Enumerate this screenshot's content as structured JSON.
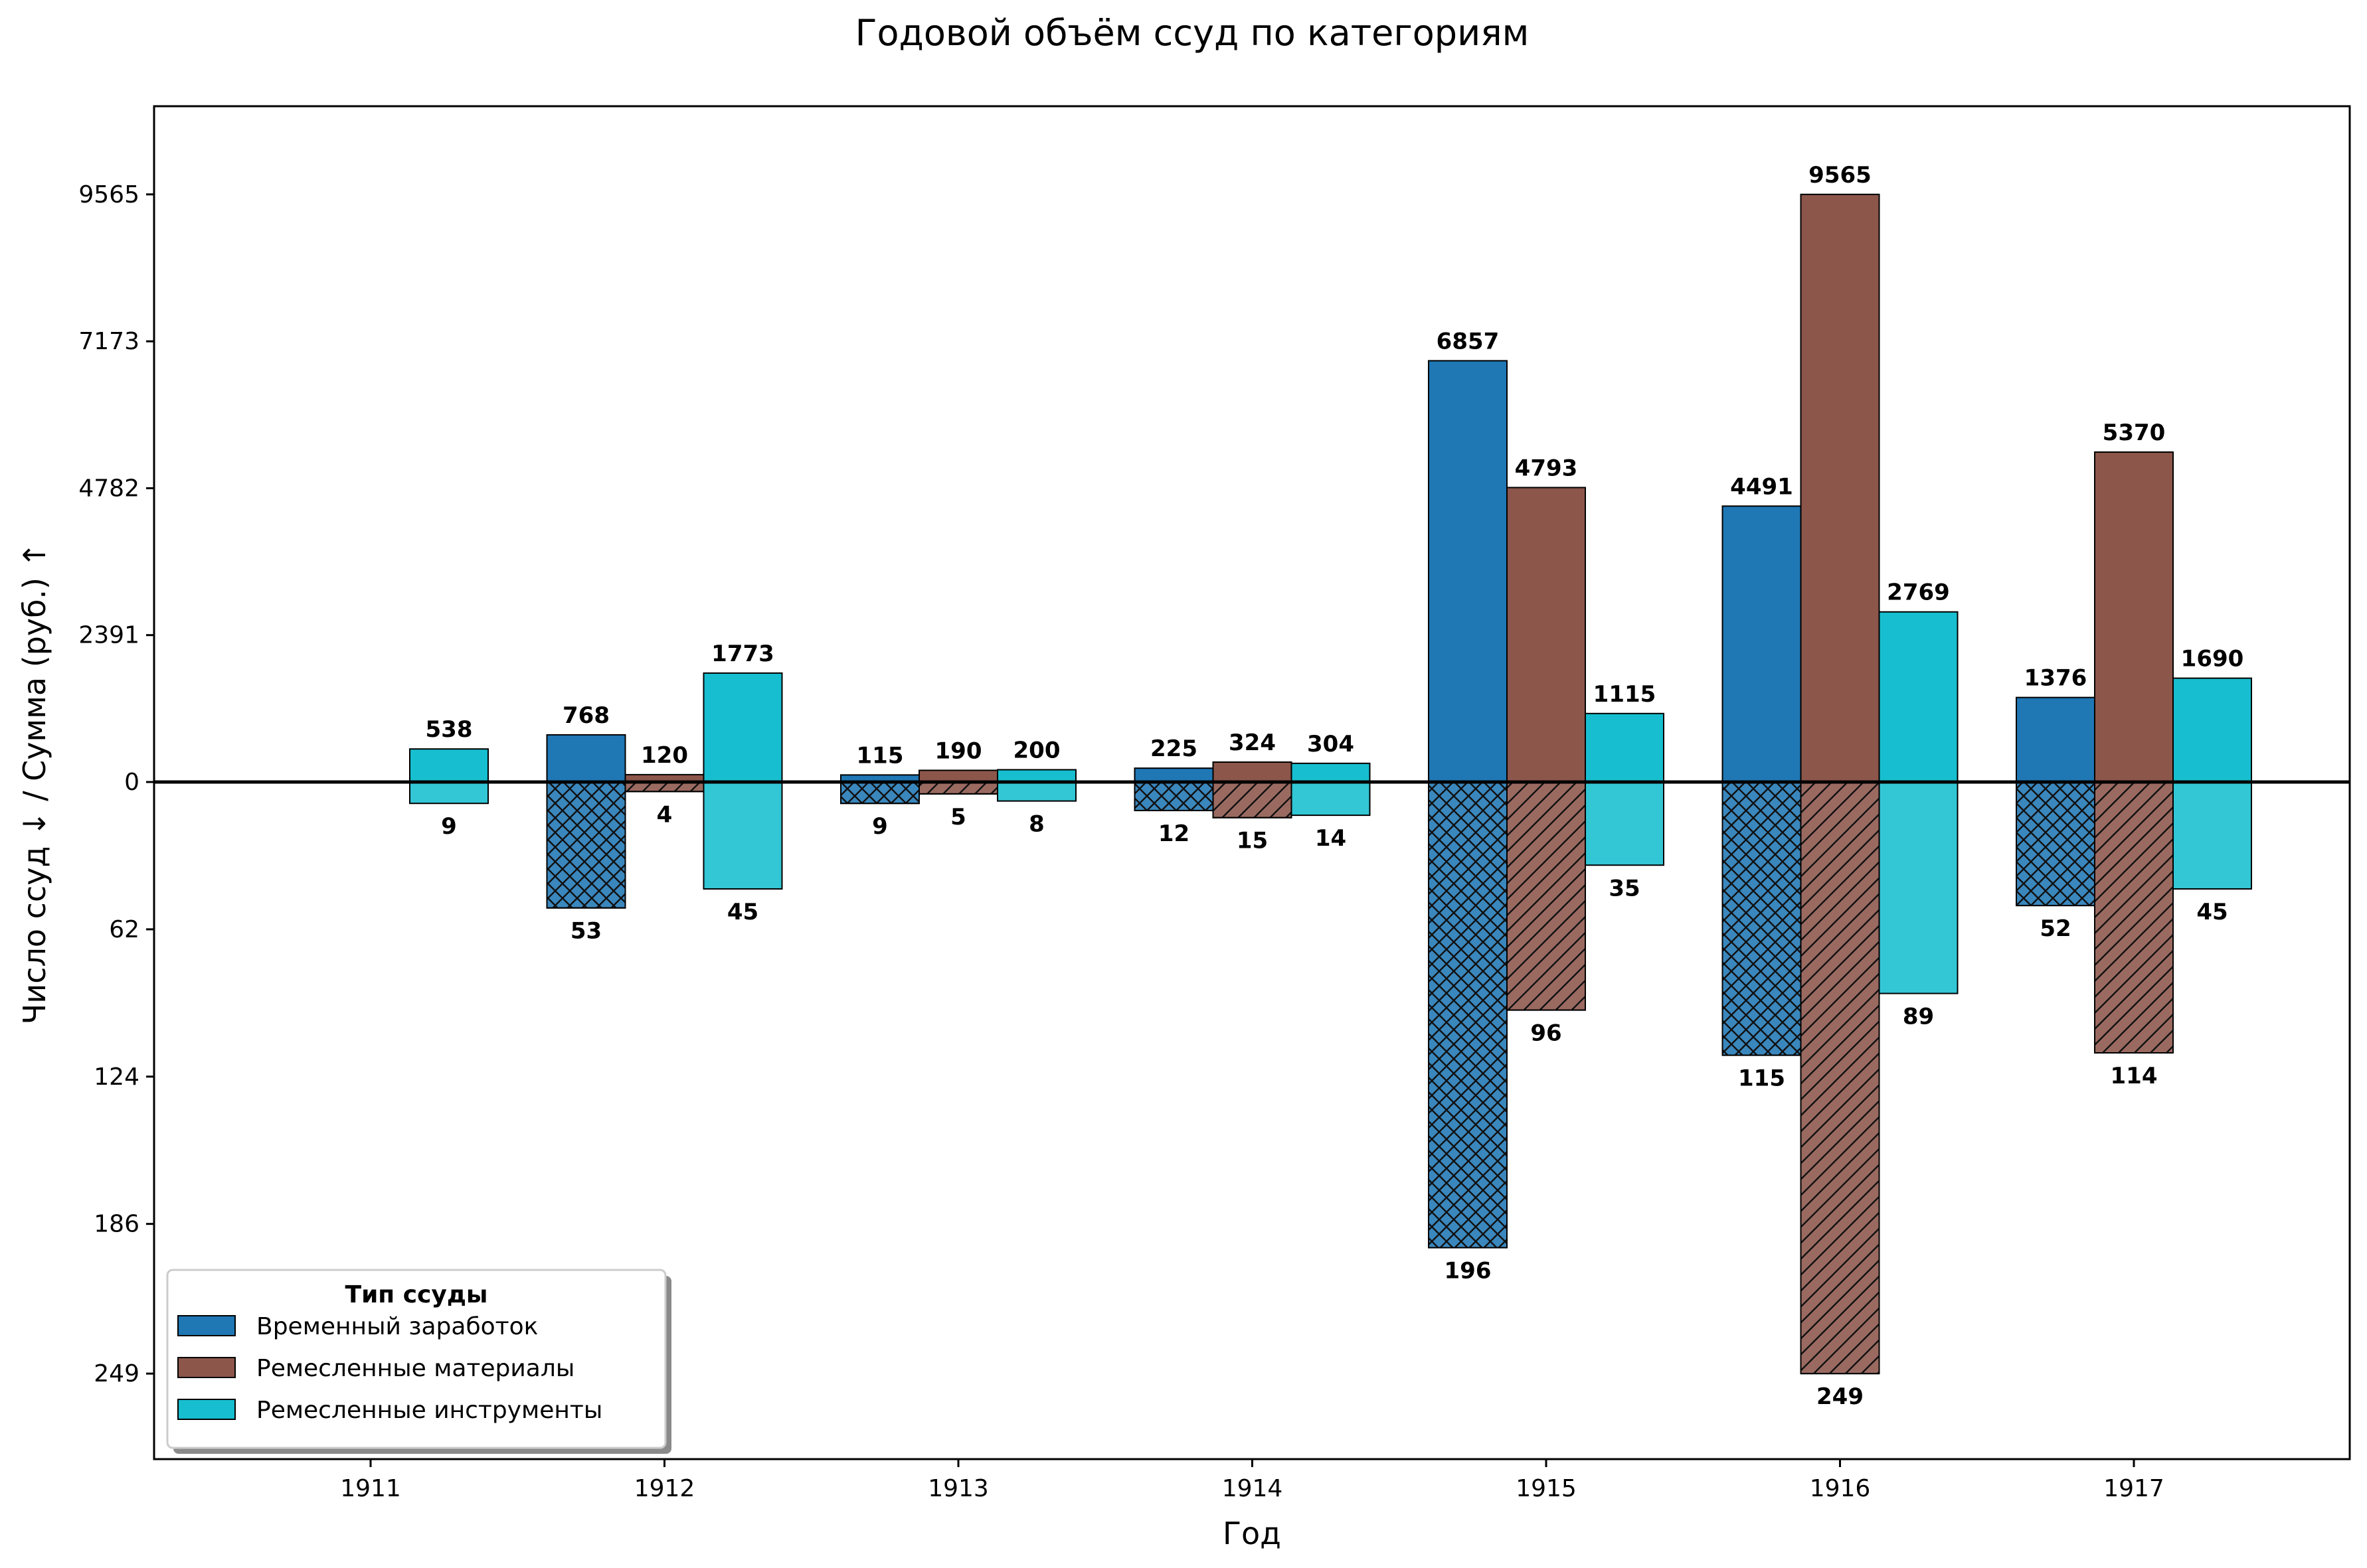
{
  "chart_data": {
    "type": "bar",
    "title": "Годовой объём ссуд по категориям",
    "xlabel": "Год",
    "ylabel": "Число ссуд ↓ / Сумма (руб.) ↑",
    "categories": [
      "1911",
      "1912",
      "1913",
      "1914",
      "1915",
      "1916",
      "1917"
    ],
    "upper_ylim": [
      0,
      11000
    ],
    "lower_ylim": [
      0,
      285
    ],
    "upper_ticks": [
      0,
      2391,
      4782,
      7173,
      9565
    ],
    "lower_ticks": [
      62,
      124,
      186,
      249
    ],
    "upper_tick_labels": [
      "0",
      "2391",
      "4782",
      "7173",
      "9565"
    ],
    "lower_tick_labels": [
      "62",
      "124",
      "186",
      "249"
    ],
    "legend": {
      "title": "Тип ссуды",
      "position": "lower-left"
    },
    "series": [
      {
        "name": "Временный заработок",
        "color": "#1f77b4",
        "hatch": "crosshatch",
        "sums": [
          null,
          768,
          115,
          225,
          6857,
          4491,
          1376
        ],
        "counts": [
          null,
          53,
          9,
          12,
          196,
          115,
          52
        ],
        "sum_labels": [
          null,
          "768",
          "115",
          "225",
          "6857",
          "4491",
          "1376"
        ],
        "count_labels": [
          null,
          "53",
          "9",
          "12",
          "196",
          "115",
          "52"
        ]
      },
      {
        "name": "Ремесленные материалы",
        "color": "#8c564b",
        "hatch": "diagonal",
        "sums": [
          null,
          120,
          190,
          324,
          4793,
          9565,
          5370
        ],
        "counts": [
          null,
          4,
          5,
          15,
          96,
          249,
          114
        ],
        "sum_labels": [
          null,
          "120",
          "190",
          "324",
          "4793",
          "9565",
          "5370"
        ],
        "count_labels": [
          null,
          "4",
          "5",
          "15",
          "96",
          "249",
          "114"
        ]
      },
      {
        "name": "Ремесленные инструменты",
        "color": "#17becf",
        "hatch": "none",
        "sums": [
          538,
          1773,
          200,
          304,
          1115,
          2769,
          1690
        ],
        "counts": [
          9,
          45,
          8,
          14,
          35,
          89,
          45
        ],
        "sum_labels": [
          "538",
          "1773",
          "200",
          "304",
          "1115",
          "2769",
          "1690"
        ],
        "count_labels": [
          "9",
          "45",
          "8",
          "14",
          "35",
          "89",
          "45"
        ]
      }
    ]
  }
}
